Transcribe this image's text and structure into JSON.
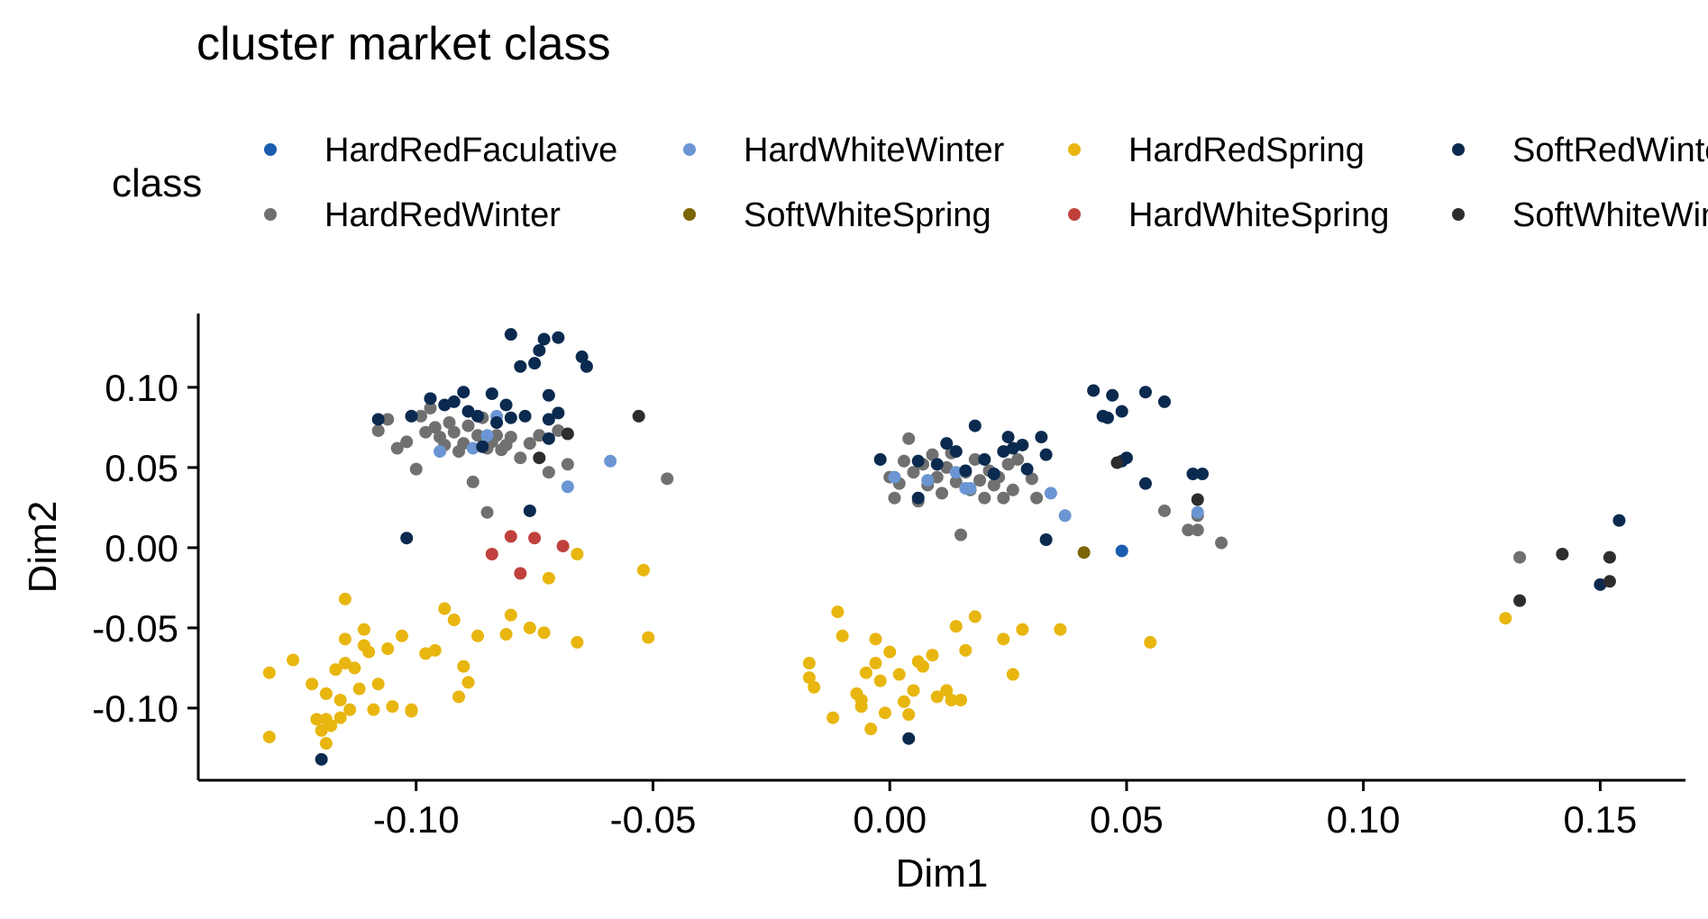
{
  "chart_data": {
    "type": "scatter",
    "title": "cluster market class",
    "xlabel": "Dim1",
    "ylabel": "Dim2",
    "xlim": [
      -0.146,
      0.168
    ],
    "ylim": [
      -0.145,
      0.146
    ],
    "xticks": [
      -0.1,
      -0.05,
      0.0,
      0.05,
      0.1,
      0.15
    ],
    "xtick_labels": [
      "-0.10",
      "-0.05",
      "0.00",
      "0.05",
      "0.10",
      "0.15"
    ],
    "yticks": [
      -0.1,
      -0.05,
      0.0,
      0.05,
      0.1
    ],
    "ytick_labels": [
      "-0.10",
      "-0.05",
      "0.00",
      "0.05",
      "0.10"
    ],
    "grid": false,
    "legend": {
      "title": "class",
      "position": "top"
    },
    "series": [
      {
        "name": "HardRedFaculative",
        "color": "#1A5DAF",
        "points": [
          [
            0.049,
            -0.002
          ]
        ]
      },
      {
        "name": "HardRedWinter",
        "color": "#707070",
        "points": [
          [
            -0.108,
            0.073
          ],
          [
            -0.106,
            0.08
          ],
          [
            -0.104,
            0.062
          ],
          [
            -0.102,
            0.066
          ],
          [
            -0.1,
            0.049
          ],
          [
            -0.099,
            0.082
          ],
          [
            -0.098,
            0.072
          ],
          [
            -0.097,
            0.087
          ],
          [
            -0.096,
            0.075
          ],
          [
            -0.095,
            0.069
          ],
          [
            -0.094,
            0.064
          ],
          [
            -0.093,
            0.078
          ],
          [
            -0.092,
            0.072
          ],
          [
            -0.091,
            0.06
          ],
          [
            -0.09,
            0.065
          ],
          [
            -0.089,
            0.076
          ],
          [
            -0.088,
            0.041
          ],
          [
            -0.087,
            0.07
          ],
          [
            -0.086,
            0.081
          ],
          [
            -0.085,
            0.062
          ],
          [
            -0.084,
            0.066
          ],
          [
            -0.083,
            0.07
          ],
          [
            -0.082,
            0.061
          ],
          [
            -0.081,
            0.064
          ],
          [
            -0.08,
            0.069
          ],
          [
            -0.078,
            0.056
          ],
          [
            -0.076,
            0.065
          ],
          [
            -0.074,
            0.07
          ],
          [
            -0.072,
            0.047
          ],
          [
            -0.07,
            0.073
          ],
          [
            -0.068,
            0.052
          ],
          [
            -0.085,
            0.022
          ],
          [
            -0.047,
            0.043
          ],
          [
            0.0,
            0.044
          ],
          [
            0.001,
            0.031
          ],
          [
            0.002,
            0.04
          ],
          [
            0.003,
            0.054
          ],
          [
            0.004,
            0.068
          ],
          [
            0.005,
            0.047
          ],
          [
            0.006,
            0.029
          ],
          [
            0.007,
            0.052
          ],
          [
            0.008,
            0.039
          ],
          [
            0.009,
            0.058
          ],
          [
            0.01,
            0.044
          ],
          [
            0.011,
            0.034
          ],
          [
            0.012,
            0.05
          ],
          [
            0.013,
            0.059
          ],
          [
            0.014,
            0.041
          ],
          [
            0.015,
            0.008
          ],
          [
            0.016,
            0.047
          ],
          [
            0.017,
            0.036
          ],
          [
            0.018,
            0.055
          ],
          [
            0.019,
            0.042
          ],
          [
            0.02,
            0.031
          ],
          [
            0.021,
            0.048
          ],
          [
            0.022,
            0.039
          ],
          [
            0.023,
            0.044
          ],
          [
            0.024,
            0.031
          ],
          [
            0.025,
            0.052
          ],
          [
            0.026,
            0.036
          ],
          [
            0.027,
            0.055
          ],
          [
            0.03,
            0.043
          ],
          [
            0.031,
            0.031
          ],
          [
            0.058,
            0.023
          ],
          [
            0.063,
            0.011
          ],
          [
            0.065,
            0.011
          ],
          [
            0.07,
            0.003
          ],
          [
            0.133,
            -0.006
          ],
          [
            0.065,
            0.02
          ]
        ]
      },
      {
        "name": "HardWhiteWinter",
        "color": "#6B96D3",
        "points": [
          [
            -0.095,
            0.06
          ],
          [
            -0.088,
            0.062
          ],
          [
            -0.085,
            0.07
          ],
          [
            -0.083,
            0.082
          ],
          [
            -0.068,
            0.038
          ],
          [
            -0.059,
            0.054
          ],
          [
            0.001,
            0.044
          ],
          [
            0.008,
            0.042
          ],
          [
            0.014,
            0.047
          ],
          [
            0.016,
            0.037
          ],
          [
            0.017,
            0.037
          ],
          [
            0.034,
            0.034
          ],
          [
            0.037,
            0.02
          ],
          [
            0.065,
            0.022
          ]
        ]
      },
      {
        "name": "SoftWhiteSpring",
        "color": "#7D6608",
        "points": [
          [
            0.041,
            -0.003
          ]
        ]
      },
      {
        "name": "HardRedSpring",
        "color": "#E8B60F",
        "points": [
          [
            -0.131,
            -0.078
          ],
          [
            -0.131,
            -0.118
          ],
          [
            -0.126,
            -0.07
          ],
          [
            -0.122,
            -0.085
          ],
          [
            -0.121,
            -0.107
          ],
          [
            -0.12,
            -0.114
          ],
          [
            -0.119,
            -0.122
          ],
          [
            -0.119,
            -0.091
          ],
          [
            -0.119,
            -0.107
          ],
          [
            -0.118,
            -0.111
          ],
          [
            -0.117,
            -0.076
          ],
          [
            -0.116,
            -0.095
          ],
          [
            -0.116,
            -0.106
          ],
          [
            -0.115,
            -0.032
          ],
          [
            -0.115,
            -0.057
          ],
          [
            -0.115,
            -0.072
          ],
          [
            -0.114,
            -0.101
          ],
          [
            -0.113,
            -0.075
          ],
          [
            -0.112,
            -0.088
          ],
          [
            -0.111,
            -0.051
          ],
          [
            -0.111,
            -0.061
          ],
          [
            -0.11,
            -0.065
          ],
          [
            -0.109,
            -0.101
          ],
          [
            -0.108,
            -0.085
          ],
          [
            -0.106,
            -0.063
          ],
          [
            -0.105,
            -0.099
          ],
          [
            -0.103,
            -0.055
          ],
          [
            -0.101,
            -0.101
          ],
          [
            -0.101,
            -0.102
          ],
          [
            -0.098,
            -0.066
          ],
          [
            -0.096,
            -0.064
          ],
          [
            -0.094,
            -0.038
          ],
          [
            -0.092,
            -0.045
          ],
          [
            -0.091,
            -0.093
          ],
          [
            -0.09,
            -0.074
          ],
          [
            -0.089,
            -0.084
          ],
          [
            -0.087,
            -0.055
          ],
          [
            -0.081,
            -0.054
          ],
          [
            -0.08,
            -0.042
          ],
          [
            -0.076,
            -0.05
          ],
          [
            -0.073,
            -0.053
          ],
          [
            -0.072,
            -0.019
          ],
          [
            -0.066,
            -0.004
          ],
          [
            -0.066,
            -0.059
          ],
          [
            -0.052,
            -0.014
          ],
          [
            -0.051,
            -0.056
          ],
          [
            -0.017,
            -0.072
          ],
          [
            -0.017,
            -0.081
          ],
          [
            -0.016,
            -0.087
          ],
          [
            -0.012,
            -0.106
          ],
          [
            -0.011,
            -0.04
          ],
          [
            -0.01,
            -0.055
          ],
          [
            -0.007,
            -0.091
          ],
          [
            -0.006,
            -0.095
          ],
          [
            -0.006,
            -0.099
          ],
          [
            -0.005,
            -0.078
          ],
          [
            -0.004,
            -0.113
          ],
          [
            -0.003,
            -0.072
          ],
          [
            -0.003,
            -0.057
          ],
          [
            -0.002,
            -0.083
          ],
          [
            -0.001,
            -0.103
          ],
          [
            0.0,
            -0.065
          ],
          [
            0.002,
            -0.079
          ],
          [
            0.003,
            -0.096
          ],
          [
            0.004,
            -0.104
          ],
          [
            0.005,
            -0.089
          ],
          [
            0.006,
            -0.071
          ],
          [
            0.007,
            -0.074
          ],
          [
            0.009,
            -0.067
          ],
          [
            0.01,
            -0.093
          ],
          [
            0.012,
            -0.089
          ],
          [
            0.013,
            -0.095
          ],
          [
            0.014,
            -0.049
          ],
          [
            0.015,
            -0.095
          ],
          [
            0.016,
            -0.064
          ],
          [
            0.018,
            -0.043
          ],
          [
            0.024,
            -0.057
          ],
          [
            0.026,
            -0.079
          ],
          [
            0.028,
            -0.051
          ],
          [
            0.036,
            -0.051
          ],
          [
            0.055,
            -0.059
          ],
          [
            0.13,
            -0.044
          ]
        ]
      },
      {
        "name": "HardWhiteSpring",
        "color": "#C0413C",
        "points": [
          [
            -0.084,
            -0.004
          ],
          [
            -0.08,
            0.007
          ],
          [
            -0.078,
            -0.016
          ],
          [
            -0.075,
            0.006
          ],
          [
            -0.069,
            0.001
          ]
        ]
      },
      {
        "name": "SoftRedWinter",
        "color": "#0B2A4F",
        "points": [
          [
            -0.108,
            0.08
          ],
          [
            -0.101,
            0.082
          ],
          [
            -0.102,
            0.006
          ],
          [
            -0.097,
            0.093
          ],
          [
            -0.094,
            0.089
          ],
          [
            -0.092,
            0.091
          ],
          [
            -0.09,
            0.097
          ],
          [
            -0.089,
            0.085
          ],
          [
            -0.087,
            0.082
          ],
          [
            -0.086,
            0.063
          ],
          [
            -0.084,
            0.096
          ],
          [
            -0.083,
            0.078
          ],
          [
            -0.081,
            0.089
          ],
          [
            -0.08,
            0.081
          ],
          [
            -0.08,
            0.133
          ],
          [
            -0.078,
            0.113
          ],
          [
            -0.077,
            0.082
          ],
          [
            -0.076,
            0.023
          ],
          [
            -0.075,
            0.115
          ],
          [
            -0.074,
            0.123
          ],
          [
            -0.073,
            0.13
          ],
          [
            -0.072,
            0.08
          ],
          [
            -0.072,
            0.095
          ],
          [
            -0.072,
            0.068
          ],
          [
            -0.07,
            0.131
          ],
          [
            -0.07,
            0.084
          ],
          [
            -0.065,
            0.119
          ],
          [
            -0.064,
            0.113
          ],
          [
            -0.12,
            -0.132
          ],
          [
            -0.002,
            0.055
          ],
          [
            0.006,
            0.054
          ],
          [
            0.01,
            0.052
          ],
          [
            0.012,
            0.065
          ],
          [
            0.014,
            0.06
          ],
          [
            0.016,
            0.048
          ],
          [
            0.018,
            0.076
          ],
          [
            0.02,
            0.055
          ],
          [
            0.022,
            0.046
          ],
          [
            0.024,
            0.06
          ],
          [
            0.025,
            0.069
          ],
          [
            0.026,
            0.062
          ],
          [
            0.028,
            0.064
          ],
          [
            0.029,
            0.049
          ],
          [
            0.032,
            0.069
          ],
          [
            0.033,
            0.058
          ],
          [
            0.033,
            0.005
          ],
          [
            0.006,
            0.031
          ],
          [
            0.043,
            0.098
          ],
          [
            0.045,
            0.082
          ],
          [
            0.046,
            0.081
          ],
          [
            0.047,
            0.095
          ],
          [
            0.049,
            0.054
          ],
          [
            0.049,
            0.085
          ],
          [
            0.05,
            0.056
          ],
          [
            0.054,
            0.04
          ],
          [
            0.054,
            0.097
          ],
          [
            0.058,
            0.091
          ],
          [
            0.064,
            0.046
          ],
          [
            0.066,
            0.046
          ],
          [
            0.004,
            -0.119
          ],
          [
            0.15,
            -0.023
          ],
          [
            0.154,
            0.017
          ]
        ]
      },
      {
        "name": "SoftWhiteWinter",
        "color": "#2D2D2D",
        "points": [
          [
            -0.053,
            0.082
          ],
          [
            -0.068,
            0.071
          ],
          [
            -0.074,
            0.056
          ],
          [
            0.048,
            0.053
          ],
          [
            0.065,
            0.03
          ],
          [
            0.133,
            -0.033
          ],
          [
            0.142,
            -0.004
          ],
          [
            0.152,
            -0.006
          ],
          [
            0.152,
            -0.021
          ]
        ]
      }
    ]
  }
}
